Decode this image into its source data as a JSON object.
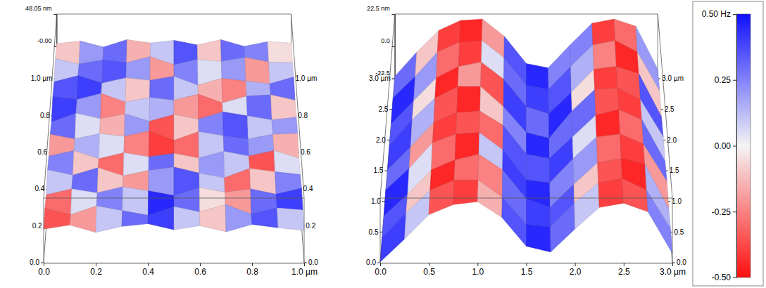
{
  "chart_data": {
    "type": "surface",
    "color_scale": {
      "range": [
        -0.5,
        0.5
      ],
      "ticks": [
        {
          "value": 0.5,
          "label": "0.50 Hz"
        },
        0.25,
        {
          "value": 0,
          "label": "0.00"
        },
        -0.25,
        {
          "value": -0.5,
          "label": "-0.50"
        }
      ]
    },
    "panels": [
      {
        "xlim": [
          0,
          1
        ],
        "xticks": [
          {
            "value": 0,
            "label": "0.0"
          },
          0.2,
          0.4,
          0.6,
          0.8,
          {
            "value": 1,
            "label": "1.0 µm"
          }
        ],
        "ylim": [
          0,
          1
        ],
        "yticks": [
          {
            "value": 0,
            "label": "0.0"
          },
          0.2,
          0.4,
          0.6,
          0.8,
          {
            "value": 1,
            "label": "1.0 µm"
          }
        ],
        "zlim": [
          -48.05,
          48.05
        ],
        "zticks": [
          {
            "value": 48.05,
            "label": "48.05 nm"
          },
          {
            "value": 0,
            "label": "-0.00"
          }
        ],
        "heights": [
          [
            2,
            8,
            -3,
            6,
            10,
            1,
            7,
            -2,
            9,
            4,
            0
          ],
          [
            5,
            -4,
            9,
            2,
            -5,
            8,
            0,
            11,
            -3,
            6,
            3
          ],
          [
            -2,
            7,
            1,
            10,
            4,
            -3,
            9,
            2,
            7,
            -1,
            8
          ],
          [
            8,
            0,
            11,
            -1,
            7,
            12,
            3,
            -4,
            10,
            5,
            1
          ],
          [
            1,
            9,
            -3,
            6,
            0,
            5,
            -2,
            8,
            1,
            9,
            -2
          ],
          [
            6,
            -1,
            7,
            3,
            11,
            -3,
            10,
            4,
            -1,
            6,
            7
          ],
          [
            -3,
            10,
            2,
            9,
            -2,
            8,
            1,
            12,
            6,
            0,
            4
          ],
          [
            7,
            3,
            12,
            -1,
            6,
            2,
            11,
            -2,
            8,
            10,
            2
          ],
          [
            2,
            11,
            0,
            8,
            4,
            10,
            -3,
            7,
            3,
            -1,
            9
          ],
          [
            9,
            1,
            7,
            3,
            12,
            0,
            8,
            5,
            11,
            4,
            3
          ],
          [
            4,
            8,
            -1,
            10,
            5,
            9,
            2,
            10,
            0,
            7,
            5
          ]
        ],
        "frequency": [
          [
            -0.35,
            -0.2,
            0.1,
            0.3,
            0.4,
            0.1,
            -0.1,
            0.2,
            0.35,
            0.1
          ],
          [
            -0.3,
            0.05,
            0.25,
            0.1,
            0.45,
            0.3,
            -0.05,
            -0.2,
            0.3,
            0.4
          ],
          [
            0.1,
            0.3,
            -0.1,
            -0.2,
            0.2,
            0.35,
            0.1,
            -0.3,
            -0.1,
            0.25
          ],
          [
            0.25,
            -0.1,
            -0.3,
            0.05,
            0.3,
            -0.1,
            0.2,
            0.1,
            -0.35,
            0.05
          ],
          [
            -0.2,
            0.15,
            0.05,
            -0.25,
            -0.4,
            -0.3,
            0.1,
            0.3,
            0.2,
            -0.15
          ],
          [
            0.3,
            0.05,
            -0.15,
            0.2,
            -0.35,
            -0.1,
            0.25,
            0.35,
            0.1,
            0.2
          ],
          [
            0.4,
            0.2,
            -0.25,
            0.1,
            0.15,
            -0.2,
            -0.3,
            0.05,
            0.3,
            -0.1
          ],
          [
            0.35,
            0.4,
            0.1,
            -0.1,
            0.3,
            0.1,
            -0.15,
            -0.25,
            0.15,
            0.3
          ],
          [
            0.1,
            0.3,
            0.35,
            0.2,
            -0.2,
            0.25,
            0.05,
            0.2,
            -0.2,
            0.1
          ],
          [
            -0.1,
            0.2,
            0.3,
            -0.15,
            0.1,
            0.35,
            -0.1,
            0.3,
            0.25,
            -0.05
          ]
        ]
      },
      {
        "xlim": [
          0,
          3
        ],
        "xticks": [
          {
            "value": 0,
            "label": "0.0"
          },
          0.5,
          {
            "value": 1,
            "label": "1.0"
          },
          1.5,
          {
            "value": 2,
            "label": "2.0"
          },
          2.5,
          {
            "value": 3,
            "label": "3.0 µm"
          }
        ],
        "ylim": [
          0,
          3
        ],
        "yticks": [
          {
            "value": 0,
            "label": "0.0"
          },
          0.5,
          {
            "value": 1,
            "label": "1.0"
          },
          1.5,
          {
            "value": 2,
            "label": "2.0"
          },
          2.5,
          {
            "value": 3,
            "label": "3.0 µm"
          }
        ],
        "zlim": [
          -22.5,
          22.5
        ],
        "zticks": [
          {
            "value": 22.5,
            "label": "22.5 nm"
          },
          {
            "value": 0,
            "label": "0.0"
          },
          -22.5
        ],
        "heights": [
          [
            -22,
            -6,
            11,
            18,
            20,
            9,
            -11,
            -15,
            1,
            16,
            19,
            13,
            -16
          ],
          [
            -21,
            -4,
            12,
            19,
            19,
            7,
            -12,
            -14,
            3,
            17,
            20,
            12,
            -15
          ],
          [
            -22,
            -7,
            10,
            17,
            21,
            10,
            -10,
            -16,
            0,
            15,
            18,
            14,
            -17
          ],
          [
            -20,
            -5,
            13,
            19,
            20,
            8,
            -13,
            -15,
            2,
            17,
            19,
            12,
            -14
          ],
          [
            -22,
            -6,
            11,
            18,
            19,
            9,
            -11,
            -14,
            1,
            16,
            20,
            13,
            -16
          ],
          [
            -21,
            -3,
            12,
            20,
            20,
            6,
            -12,
            -16,
            3,
            18,
            19,
            11,
            -15
          ],
          [
            -22,
            -6,
            10,
            18,
            21,
            9,
            -10,
            -15,
            0,
            16,
            18,
            13,
            -17
          ],
          [
            -20,
            -5,
            12,
            19,
            20,
            8,
            -11,
            -14,
            2,
            17,
            20,
            12,
            -15
          ],
          [
            -21,
            -4,
            11,
            18,
            19,
            7,
            -12,
            -15,
            1,
            16,
            19,
            14,
            -16
          ]
        ],
        "frequency": [
          [
            0.4,
            0.1,
            -0.35,
            -0.4,
            -0.15,
            0.35,
            0.45,
            0.3,
            0.1,
            -0.4,
            -0.35,
            0.25
          ],
          [
            0.35,
            -0.1,
            -0.45,
            -0.3,
            -0.25,
            0.3,
            0.4,
            0.35,
            -0.1,
            -0.35,
            -0.45,
            0.15
          ],
          [
            0.45,
            0.05,
            -0.3,
            -0.45,
            0.1,
            0.4,
            0.45,
            0.25,
            0.2,
            -0.3,
            -0.4,
            -0.2
          ],
          [
            0.3,
            -0.2,
            -0.4,
            -0.35,
            -0.3,
            0.35,
            0.35,
            0.4,
            0.05,
            -0.45,
            -0.3,
            0.3
          ],
          [
            0.4,
            0.15,
            -0.35,
            -0.45,
            -0.1,
            0.25,
            0.45,
            0.3,
            0.3,
            -0.35,
            -0.4,
            0.1
          ],
          [
            0.35,
            -0.05,
            -0.45,
            -0.2,
            -0.35,
            0.4,
            0.3,
            0.45,
            -0.05,
            -0.4,
            -0.35,
            0.35
          ],
          [
            0.45,
            0.2,
            -0.3,
            -0.4,
            0.05,
            0.3,
            0.4,
            0.35,
            0.15,
            -0.25,
            -0.45,
            -0.1
          ],
          [
            0.3,
            -0.1,
            -0.4,
            -0.45,
            -0.2,
            0.35,
            0.45,
            0.25,
            0.25,
            -0.4,
            -0.3,
            0.2
          ]
        ]
      }
    ]
  }
}
